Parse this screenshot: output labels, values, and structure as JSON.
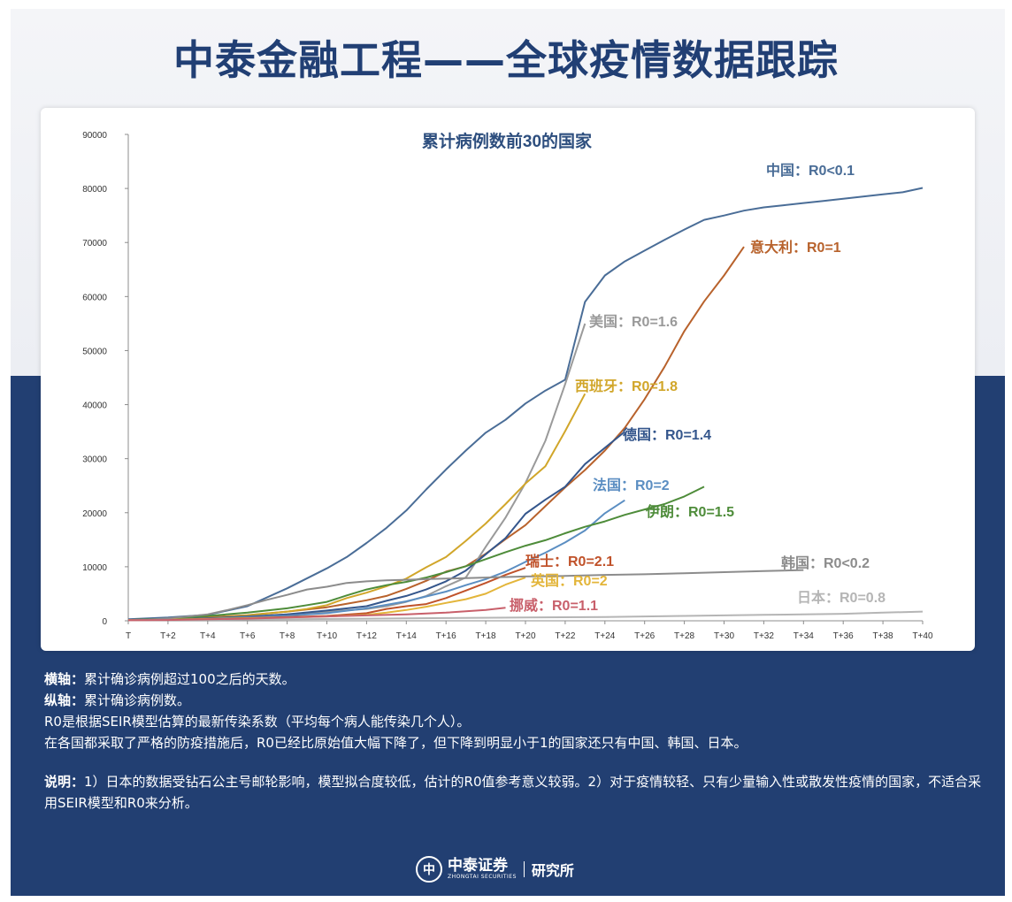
{
  "page_title": "中泰金融工程——全球疫情数据跟踪",
  "chart_data": {
    "type": "line",
    "title": "累计病例数前30的国家",
    "xlabel": "",
    "ylabel": "",
    "x_tick_labels": [
      "T",
      "T+2",
      "T+4",
      "T+6",
      "T+8",
      "T+10",
      "T+12",
      "T+14",
      "T+16",
      "T+18",
      "T+20",
      "T+22",
      "T+24",
      "T+26",
      "T+28",
      "T+30",
      "T+32",
      "T+34",
      "T+36",
      "T+38",
      "T+40"
    ],
    "xlim": [
      0,
      40
    ],
    "ylim": [
      0,
      90000
    ],
    "y_ticks": [
      0,
      10000,
      20000,
      30000,
      40000,
      50000,
      60000,
      70000,
      80000,
      90000
    ],
    "grid": false,
    "series": [
      {
        "name": "中国",
        "label": "中国：R0<0.1",
        "color": "#4a6d97",
        "points": [
          [
            0,
            300
          ],
          [
            2,
            600
          ],
          [
            4,
            1100
          ],
          [
            6,
            2700
          ],
          [
            8,
            6000
          ],
          [
            10,
            9700
          ],
          [
            11,
            11800
          ],
          [
            12,
            14400
          ],
          [
            13,
            17200
          ],
          [
            14,
            20400
          ],
          [
            15,
            24300
          ],
          [
            16,
            28000
          ],
          [
            17,
            31500
          ],
          [
            18,
            34800
          ],
          [
            19,
            37200
          ],
          [
            20,
            40200
          ],
          [
            21,
            42600
          ],
          [
            22,
            44600
          ],
          [
            23,
            59000
          ],
          [
            24,
            63900
          ],
          [
            25,
            66500
          ],
          [
            26,
            68500
          ],
          [
            27,
            70500
          ],
          [
            28,
            72400
          ],
          [
            29,
            74200
          ],
          [
            30,
            75000
          ],
          [
            31,
            75900
          ],
          [
            32,
            76500
          ],
          [
            33,
            76900
          ],
          [
            34,
            77300
          ],
          [
            35,
            77700
          ],
          [
            36,
            78100
          ],
          [
            37,
            78500
          ],
          [
            38,
            78900
          ],
          [
            39,
            79300
          ],
          [
            40,
            80100
          ]
        ]
      },
      {
        "name": "意大利",
        "label": "意大利：R0=1",
        "color": "#b8622c",
        "points": [
          [
            0,
            150
          ],
          [
            2,
            320
          ],
          [
            4,
            650
          ],
          [
            6,
            1050
          ],
          [
            8,
            1700
          ],
          [
            10,
            2500
          ],
          [
            12,
            3800
          ],
          [
            13,
            4600
          ],
          [
            14,
            5900
          ],
          [
            15,
            7400
          ],
          [
            16,
            9100
          ],
          [
            17,
            10100
          ],
          [
            18,
            12400
          ],
          [
            19,
            15100
          ],
          [
            20,
            17700
          ],
          [
            21,
            21200
          ],
          [
            22,
            24700
          ],
          [
            23,
            27900
          ],
          [
            24,
            31500
          ],
          [
            25,
            35700
          ],
          [
            26,
            41000
          ],
          [
            27,
            47000
          ],
          [
            28,
            53600
          ],
          [
            29,
            59100
          ],
          [
            30,
            63900
          ],
          [
            31,
            69200
          ]
        ]
      },
      {
        "name": "美国",
        "label": "美国：R0=1.6",
        "color": "#9a9a9a",
        "points": [
          [
            0,
            100
          ],
          [
            2,
            200
          ],
          [
            4,
            400
          ],
          [
            6,
            700
          ],
          [
            8,
            1200
          ],
          [
            10,
            1700
          ],
          [
            12,
            2200
          ],
          [
            13,
            2700
          ],
          [
            14,
            3500
          ],
          [
            15,
            4600
          ],
          [
            16,
            6400
          ],
          [
            17,
            8000
          ],
          [
            18,
            13700
          ],
          [
            19,
            19100
          ],
          [
            20,
            25500
          ],
          [
            21,
            33300
          ],
          [
            22,
            43800
          ],
          [
            23,
            55000
          ]
        ]
      },
      {
        "name": "西班牙",
        "label": "西班牙：R0=1.8",
        "color": "#d1a62a",
        "points": [
          [
            0,
            120
          ],
          [
            2,
            260
          ],
          [
            4,
            500
          ],
          [
            6,
            1000
          ],
          [
            8,
            1700
          ],
          [
            9,
            2200
          ],
          [
            10,
            2900
          ],
          [
            11,
            4200
          ],
          [
            12,
            5200
          ],
          [
            13,
            6400
          ],
          [
            14,
            7800
          ],
          [
            15,
            9900
          ],
          [
            16,
            11800
          ],
          [
            17,
            14800
          ],
          [
            18,
            18000
          ],
          [
            19,
            21600
          ],
          [
            20,
            25400
          ],
          [
            21,
            28600
          ],
          [
            22,
            35100
          ],
          [
            23,
            42000
          ]
        ]
      },
      {
        "name": "德国",
        "label": "德国：R0=1.4",
        "color": "#34568c",
        "points": [
          [
            0,
            130
          ],
          [
            2,
            260
          ],
          [
            4,
            480
          ],
          [
            6,
            800
          ],
          [
            8,
            1200
          ],
          [
            10,
            1900
          ],
          [
            12,
            2700
          ],
          [
            13,
            3700
          ],
          [
            14,
            4600
          ],
          [
            15,
            5800
          ],
          [
            16,
            7300
          ],
          [
            17,
            9300
          ],
          [
            18,
            12300
          ],
          [
            19,
            15300
          ],
          [
            20,
            19800
          ],
          [
            21,
            22400
          ],
          [
            22,
            24800
          ],
          [
            23,
            29000
          ],
          [
            24,
            32000
          ],
          [
            25,
            35000
          ]
        ]
      },
      {
        "name": "法国",
        "label": "法国：R0=2",
        "color": "#5b8ec2",
        "points": [
          [
            0,
            100
          ],
          [
            2,
            190
          ],
          [
            4,
            380
          ],
          [
            6,
            650
          ],
          [
            8,
            950
          ],
          [
            10,
            1400
          ],
          [
            12,
            2300
          ],
          [
            14,
            3600
          ],
          [
            15,
            4500
          ],
          [
            16,
            5400
          ],
          [
            17,
            6600
          ],
          [
            18,
            7700
          ],
          [
            19,
            9100
          ],
          [
            20,
            10900
          ],
          [
            21,
            12600
          ],
          [
            22,
            14500
          ],
          [
            23,
            16700
          ],
          [
            24,
            19900
          ],
          [
            25,
            22300
          ]
        ]
      },
      {
        "name": "伊朗",
        "label": "伊朗：R0=1.5",
        "color": "#4e8c3a",
        "points": [
          [
            0,
            140
          ],
          [
            2,
            400
          ],
          [
            4,
            900
          ],
          [
            6,
            1500
          ],
          [
            8,
            2300
          ],
          [
            9,
            2900
          ],
          [
            10,
            3500
          ],
          [
            11,
            4700
          ],
          [
            12,
            5800
          ],
          [
            13,
            6600
          ],
          [
            14,
            7200
          ],
          [
            15,
            8000
          ],
          [
            16,
            9000
          ],
          [
            17,
            10100
          ],
          [
            18,
            11400
          ],
          [
            19,
            12700
          ],
          [
            20,
            13900
          ],
          [
            21,
            14900
          ],
          [
            22,
            16200
          ],
          [
            23,
            17400
          ],
          [
            24,
            18400
          ],
          [
            25,
            19600
          ],
          [
            26,
            20600
          ],
          [
            27,
            21600
          ],
          [
            28,
            23000
          ],
          [
            29,
            24800
          ]
        ]
      },
      {
        "name": "瑞士",
        "label": "瑞士：R0=2.1",
        "color": "#c0522a",
        "points": [
          [
            0,
            100
          ],
          [
            2,
            200
          ],
          [
            4,
            350
          ],
          [
            6,
            500
          ],
          [
            8,
            700
          ],
          [
            10,
            900
          ],
          [
            12,
            1400
          ],
          [
            13,
            2200
          ],
          [
            14,
            2700
          ],
          [
            15,
            3100
          ],
          [
            16,
            4200
          ],
          [
            17,
            5600
          ],
          [
            18,
            7000
          ],
          [
            19,
            8500
          ],
          [
            20,
            9800
          ]
        ]
      },
      {
        "name": "英国",
        "label": "英国：R0=2",
        "color": "#e3b53a",
        "points": [
          [
            0,
            120
          ],
          [
            2,
            200
          ],
          [
            4,
            320
          ],
          [
            6,
            460
          ],
          [
            8,
            600
          ],
          [
            10,
            800
          ],
          [
            12,
            1100
          ],
          [
            13,
            1500
          ],
          [
            14,
            2000
          ],
          [
            15,
            2600
          ],
          [
            16,
            3300
          ],
          [
            17,
            4000
          ],
          [
            18,
            5000
          ],
          [
            19,
            6700
          ],
          [
            20,
            8000
          ]
        ]
      },
      {
        "name": "韩国",
        "label": "韩国：R0<0.2",
        "color": "#8c8c8c",
        "points": [
          [
            0,
            100
          ],
          [
            1,
            200
          ],
          [
            2,
            450
          ],
          [
            3,
            800
          ],
          [
            4,
            1200
          ],
          [
            5,
            2000
          ],
          [
            6,
            2900
          ],
          [
            7,
            3900
          ],
          [
            8,
            4800
          ],
          [
            9,
            5800
          ],
          [
            10,
            6300
          ],
          [
            11,
            7000
          ],
          [
            12,
            7300
          ],
          [
            13,
            7500
          ],
          [
            14,
            7600
          ],
          [
            15,
            7700
          ],
          [
            16,
            7800
          ],
          [
            17,
            7900
          ],
          [
            18,
            8000
          ],
          [
            19,
            8100
          ],
          [
            20,
            8200
          ],
          [
            22,
            8300
          ],
          [
            24,
            8500
          ],
          [
            26,
            8600
          ],
          [
            28,
            8800
          ],
          [
            30,
            9000
          ],
          [
            32,
            9200
          ],
          [
            34,
            9400
          ]
        ]
      },
      {
        "name": "日本",
        "label": "日本：R0=0.8",
        "color": "#b5b5b5",
        "points": [
          [
            0,
            100
          ],
          [
            4,
            200
          ],
          [
            8,
            300
          ],
          [
            12,
            400
          ],
          [
            16,
            500
          ],
          [
            20,
            600
          ],
          [
            24,
            700
          ],
          [
            28,
            900
          ],
          [
            32,
            1100
          ],
          [
            36,
            1300
          ],
          [
            38,
            1500
          ],
          [
            40,
            1700
          ]
        ]
      },
      {
        "name": "挪威",
        "label": "挪威：R0=1.1",
        "color": "#c85f6a",
        "points": [
          [
            0,
            100
          ],
          [
            2,
            150
          ],
          [
            4,
            300
          ],
          [
            6,
            400
          ],
          [
            8,
            600
          ],
          [
            10,
            800
          ],
          [
            12,
            1000
          ],
          [
            14,
            1200
          ],
          [
            16,
            1500
          ],
          [
            18,
            2000
          ],
          [
            19,
            2400
          ]
        ]
      }
    ]
  },
  "notes": {
    "x_axis_label": "横轴：",
    "x_axis_text": "累计确诊病例超过100之后的天数。",
    "y_axis_label": "纵轴：",
    "y_axis_text": "累计确诊病例数。",
    "r0_text": "R0是根据SEIR模型估算的最新传染系数（平均每个病人能传染几个人）。",
    "summary_text": "在各国都采取了严格的防疫措施后，R0已经比原始值大幅下降了，但下降到明显小于1的国家还只有中国、韩国、日本。",
    "explain_label": "说明：",
    "explain_text": "1）日本的数据受钻石公主号邮轮影响，模型拟合度较低，估计的R0值参考意义较弱。2）对于疫情较轻、只有少量输入性或散发性疫情的国家，不适合采用SEIR模型和R0来分析。"
  },
  "footer": {
    "logo_mark": "中",
    "brand_name": "中泰证券",
    "brand_sub": "ZHONGTAI SECURITIES",
    "department": "研究所"
  }
}
